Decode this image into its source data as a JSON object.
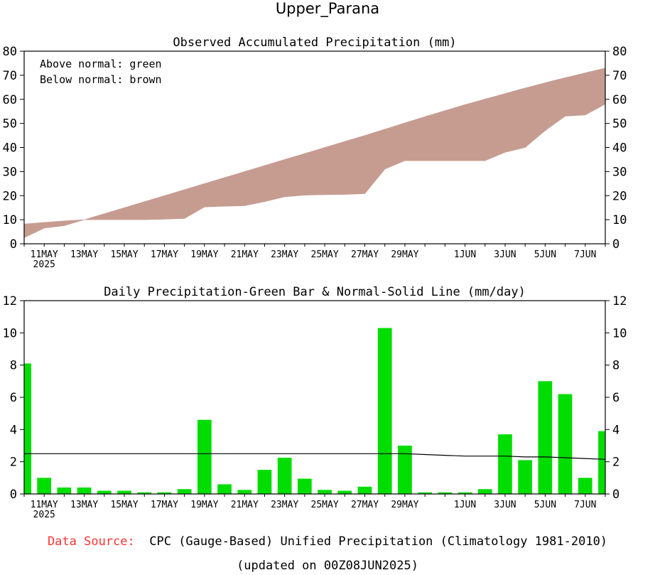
{
  "page": {
    "title": "Upper_Parana",
    "source_label": "Data Source:",
    "source_text": "CPC (Gauge-Based) Unified Precipitation (Climatology 1981-2010)",
    "updated": "(updated on 00Z08JUN2025)",
    "colors": {
      "above": "#90ee90",
      "below": "#c69c91",
      "bar": "#00dd00",
      "source_label": "#ff3333",
      "line": "#000000"
    }
  },
  "chart_data": [
    {
      "type": "area",
      "title": "Observed Accumulated Precipitation (mm)",
      "legend": [
        "Above normal: green",
        "Below normal: brown"
      ],
      "legend_position": "top-left",
      "x": [
        "10MAY",
        "11MAY",
        "12MAY",
        "13MAY",
        "14MAY",
        "15MAY",
        "16MAY",
        "17MAY",
        "18MAY",
        "19MAY",
        "20MAY",
        "21MAY",
        "22MAY",
        "23MAY",
        "24MAY",
        "25MAY",
        "26MAY",
        "27MAY",
        "28MAY",
        "29MAY",
        "30MAY",
        "31MAY",
        "1JUN",
        "2JUN",
        "3JUN",
        "4JUN",
        "5JUN",
        "6JUN",
        "7JUN",
        "8JUN"
      ],
      "tick_labels": [
        {
          "day": 1,
          "label": "11MAY",
          "sub": "2025"
        },
        {
          "day": 3,
          "label": "13MAY"
        },
        {
          "day": 5,
          "label": "15MAY"
        },
        {
          "day": 7,
          "label": "17MAY"
        },
        {
          "day": 9,
          "label": "19MAY"
        },
        {
          "day": 11,
          "label": "21MAY"
        },
        {
          "day": 13,
          "label": "23MAY"
        },
        {
          "day": 15,
          "label": "25MAY"
        },
        {
          "day": 17,
          "label": "27MAY"
        },
        {
          "day": 19,
          "label": "29MAY"
        },
        {
          "day": 22,
          "label": "1JUN"
        },
        {
          "day": 24,
          "label": "3JUN"
        },
        {
          "day": 26,
          "label": "5JUN"
        },
        {
          "day": 28,
          "label": "7JUN"
        }
      ],
      "series": [
        {
          "name": "Observed",
          "values": [
            2.5,
            6.5,
            7.5,
            10.0,
            10.0,
            10.0,
            10.0,
            10.2,
            10.5,
            15.3,
            15.6,
            15.8,
            17.5,
            19.5,
            20.2,
            20.4,
            20.5,
            20.8,
            31.0,
            34.5,
            34.5,
            34.5,
            34.5,
            34.5,
            38.0,
            40.0,
            47.0,
            53.0,
            53.5,
            58.0
          ]
        },
        {
          "name": "Normal",
          "values": [
            8.2,
            8.9,
            9.5,
            10.0,
            12.5,
            15.0,
            17.5,
            20.0,
            22.5,
            25.0,
            27.5,
            30.0,
            32.5,
            35.0,
            37.5,
            40.0,
            42.5,
            45.0,
            47.6,
            50.2,
            52.8,
            55.3,
            57.8,
            60.1,
            62.4,
            64.7,
            66.9,
            69.0,
            71.0,
            73.0
          ]
        }
      ],
      "ylim": [
        0,
        80
      ],
      "yticks": [
        0,
        10,
        20,
        30,
        40,
        50,
        60,
        70,
        80
      ],
      "ylabel": "",
      "xlabel": "",
      "grid": false
    },
    {
      "type": "bar",
      "title": "Daily Precipitation-Green Bar & Normal-Solid Line (mm/day)",
      "x": [
        "10MAY",
        "11MAY",
        "12MAY",
        "13MAY",
        "14MAY",
        "15MAY",
        "16MAY",
        "17MAY",
        "18MAY",
        "19MAY",
        "20MAY",
        "21MAY",
        "22MAY",
        "23MAY",
        "24MAY",
        "25MAY",
        "26MAY",
        "27MAY",
        "28MAY",
        "29MAY",
        "30MAY",
        "31MAY",
        "1JUN",
        "2JUN",
        "3JUN",
        "4JUN",
        "5JUN",
        "6JUN",
        "7JUN",
        "8JUN"
      ],
      "tick_labels": [
        {
          "day": 1,
          "label": "11MAY",
          "sub": "2025"
        },
        {
          "day": 3,
          "label": "13MAY"
        },
        {
          "day": 5,
          "label": "15MAY"
        },
        {
          "day": 7,
          "label": "17MAY"
        },
        {
          "day": 9,
          "label": "19MAY"
        },
        {
          "day": 11,
          "label": "21MAY"
        },
        {
          "day": 13,
          "label": "23MAY"
        },
        {
          "day": 15,
          "label": "25MAY"
        },
        {
          "day": 17,
          "label": "27MAY"
        },
        {
          "day": 19,
          "label": "29MAY"
        },
        {
          "day": 22,
          "label": "1JUN"
        },
        {
          "day": 24,
          "label": "3JUN"
        },
        {
          "day": 26,
          "label": "5JUN"
        },
        {
          "day": 28,
          "label": "7JUN"
        }
      ],
      "series": [
        {
          "name": "Daily Precipitation",
          "values": [
            8.1,
            1.0,
            0.4,
            0.4,
            0.2,
            0.2,
            0.1,
            0.1,
            0.3,
            4.6,
            0.6,
            0.25,
            1.5,
            2.25,
            0.95,
            0.25,
            0.2,
            0.45,
            10.3,
            3.0,
            0.1,
            0.1,
            0.1,
            0.3,
            3.7,
            2.1,
            7.0,
            6.2,
            1.0,
            3.9
          ]
        },
        {
          "name": "Normal",
          "values": [
            2.5,
            2.5,
            2.5,
            2.5,
            2.5,
            2.5,
            2.5,
            2.5,
            2.5,
            2.5,
            2.5,
            2.5,
            2.5,
            2.5,
            2.5,
            2.5,
            2.5,
            2.5,
            2.5,
            2.5,
            2.45,
            2.4,
            2.35,
            2.35,
            2.35,
            2.3,
            2.3,
            2.25,
            2.2,
            2.15
          ]
        }
      ],
      "ylim": [
        0,
        12
      ],
      "yticks": [
        0,
        2,
        4,
        6,
        8,
        10,
        12
      ],
      "ylabel": "",
      "xlabel": "",
      "grid": false
    }
  ]
}
